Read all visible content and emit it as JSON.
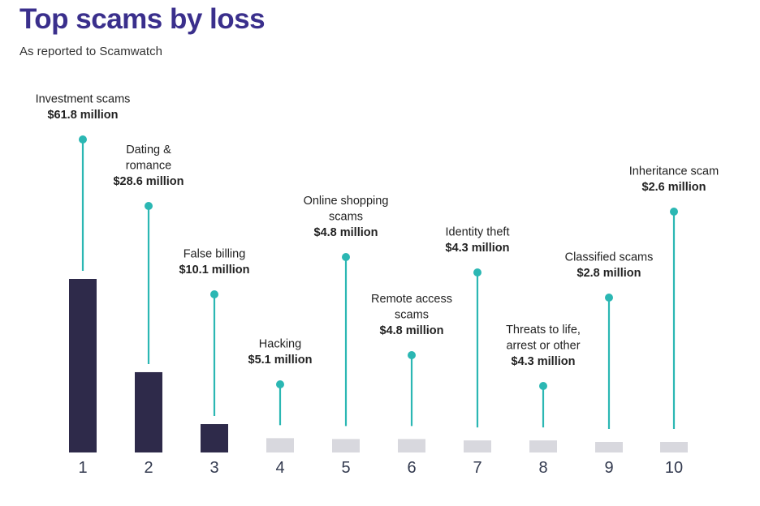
{
  "title": "Top scams by loss",
  "subtitle": "As reported to Scamwatch",
  "colors": {
    "title": "#3a2f8c",
    "bar_top3": "#2e2a4a",
    "bar_rest": "#d8d8de",
    "pin": "#2bb7b3"
  },
  "chart_data": {
    "type": "bar",
    "title": "Top scams by loss",
    "subtitle": "As reported to Scamwatch",
    "categories": [
      "1",
      "2",
      "3",
      "4",
      "5",
      "6",
      "7",
      "8",
      "9",
      "10"
    ],
    "series": [
      {
        "values": [
          61.8,
          28.6,
          10.1,
          5.1,
          4.8,
          4.8,
          4.3,
          4.3,
          2.8,
          2.6
        ]
      }
    ],
    "annotations": [
      {
        "lines": [
          "Investment scams"
        ],
        "value_label": "$61.8 million"
      },
      {
        "lines": [
          "Dating &",
          "romance"
        ],
        "value_label": "$28.6 million"
      },
      {
        "lines": [
          "False billing"
        ],
        "value_label": "$10.1 million"
      },
      {
        "lines": [
          "Hacking"
        ],
        "value_label": "$5.1 million"
      },
      {
        "lines": [
          "Online shopping",
          "scams"
        ],
        "value_label": "$4.8 million"
      },
      {
        "lines": [
          "Remote access",
          "scams"
        ],
        "value_label": "$4.8 million"
      },
      {
        "lines": [
          "Identity theft"
        ],
        "value_label": "$4.3 million"
      },
      {
        "lines": [
          "Threats to life,",
          "arrest or other"
        ],
        "value_label": "$4.3 million"
      },
      {
        "lines": [
          "Classified scams"
        ],
        "value_label": "$2.8 million"
      },
      {
        "lines": [
          "Inheritance scam"
        ],
        "value_label": "$2.6 million"
      }
    ],
    "xlabel": "",
    "ylabel": "",
    "grid": false,
    "legend": false
  }
}
